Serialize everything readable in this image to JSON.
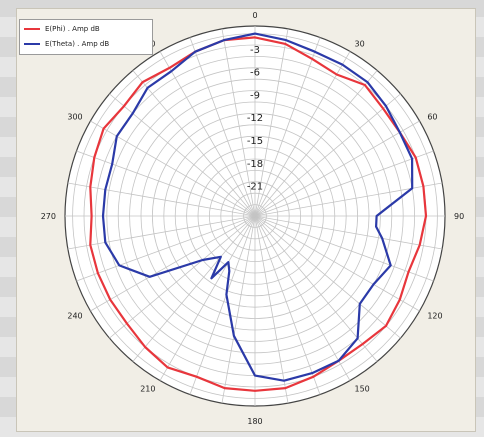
{
  "chart_data": {
    "type": "polar-line",
    "r_ticks": [
      -3,
      -6,
      -9,
      -12,
      -15,
      -18,
      -21
    ],
    "r_range": [
      -25,
      0
    ],
    "angle_ticks": [
      "0",
      "30",
      "60",
      "90",
      "120",
      "150",
      "180",
      "210",
      "240",
      "270",
      "300",
      "330"
    ],
    "angle_tick_values": [
      0,
      30,
      60,
      90,
      120,
      150,
      180,
      210,
      240,
      270,
      300,
      330
    ],
    "grid": true,
    "legend_position": "top-left",
    "series": [
      {
        "name": "E(Phi) . Amp dB",
        "color": "#e8363c",
        "points": [
          [
            0,
            -1.5
          ],
          [
            10,
            -2
          ],
          [
            20,
            -3
          ],
          [
            30,
            -3.5
          ],
          [
            40,
            -2.5
          ],
          [
            50,
            -3
          ],
          [
            60,
            -3
          ],
          [
            70,
            -2.5
          ],
          [
            80,
            -2.5
          ],
          [
            90,
            -2.5
          ],
          [
            100,
            -3
          ],
          [
            110,
            -3.5
          ],
          [
            120,
            -3
          ],
          [
            130,
            -2.5
          ],
          [
            140,
            -3
          ],
          [
            150,
            -3
          ],
          [
            160,
            -2.5
          ],
          [
            170,
            -2
          ],
          [
            180,
            -2
          ],
          [
            190,
            -2
          ],
          [
            200,
            -2.5
          ],
          [
            210,
            -2
          ],
          [
            220,
            -2.5
          ],
          [
            230,
            -3
          ],
          [
            240,
            -3
          ],
          [
            250,
            -3
          ],
          [
            260,
            -3
          ],
          [
            270,
            -3.5
          ],
          [
            280,
            -3
          ],
          [
            290,
            -2.5
          ],
          [
            300,
            -2
          ],
          [
            310,
            -2.5
          ],
          [
            320,
            -2
          ],
          [
            330,
            -2.5
          ],
          [
            340,
            -2
          ],
          [
            350,
            -1.5
          ],
          [
            360,
            -1.5
          ]
        ]
      },
      {
        "name": "E(Theta) . Amp dB",
        "color": "#2b3aa8",
        "points": [
          [
            0,
            -1
          ],
          [
            10,
            -1.5
          ],
          [
            20,
            -2
          ],
          [
            30,
            -2
          ],
          [
            40,
            -2
          ],
          [
            50,
            -2.5
          ],
          [
            60,
            -3
          ],
          [
            70,
            -3
          ],
          [
            80,
            -4
          ],
          [
            90,
            -9
          ],
          [
            95,
            -9
          ],
          [
            100,
            -8
          ],
          [
            110,
            -6
          ],
          [
            120,
            -7
          ],
          [
            130,
            -7
          ],
          [
            140,
            -4
          ],
          [
            150,
            -3
          ],
          [
            160,
            -3
          ],
          [
            170,
            -3
          ],
          [
            180,
            -4
          ],
          [
            190,
            -9
          ],
          [
            200,
            -14
          ],
          [
            205,
            -17
          ],
          [
            210,
            -18
          ],
          [
            215,
            -15
          ],
          [
            220,
            -18
          ],
          [
            230,
            -16
          ],
          [
            240,
            -9
          ],
          [
            250,
            -6
          ],
          [
            260,
            -5
          ],
          [
            270,
            -5
          ],
          [
            280,
            -5
          ],
          [
            290,
            -5
          ],
          [
            300,
            -4
          ],
          [
            310,
            -4
          ],
          [
            320,
            -3
          ],
          [
            330,
            -3
          ],
          [
            340,
            -2
          ],
          [
            350,
            -1.5
          ],
          [
            360,
            -1
          ]
        ]
      }
    ]
  }
}
